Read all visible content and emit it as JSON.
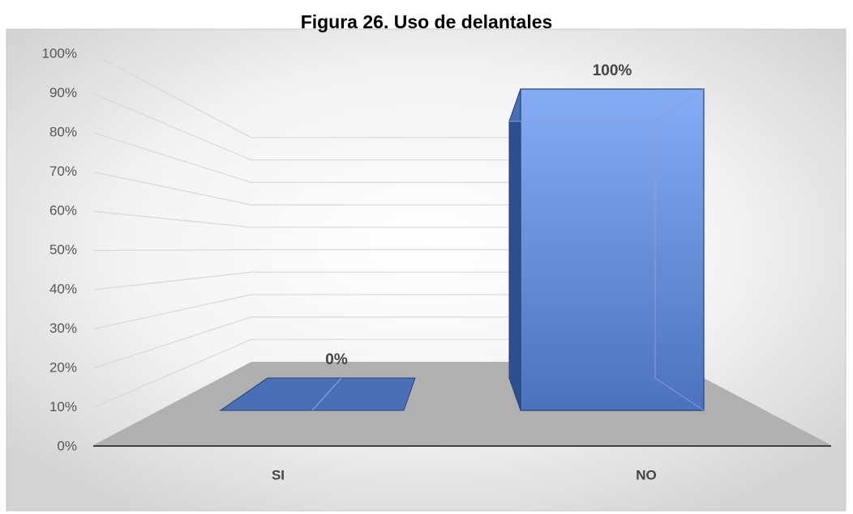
{
  "chart_data": {
    "type": "bar3d",
    "title": "Figura 26. Uso de delantales",
    "categories": [
      "SI",
      "NO"
    ],
    "values": [
      0,
      100
    ],
    "value_labels": [
      "0%",
      "100%"
    ],
    "color": "#5b86d6",
    "ylim": [
      0,
      100
    ],
    "yticks": [
      {
        "value": 0,
        "label": "0%"
      },
      {
        "value": 10,
        "label": "10%"
      },
      {
        "value": 20,
        "label": "20%"
      },
      {
        "value": 30,
        "label": "30%"
      },
      {
        "value": 40,
        "label": "40%"
      },
      {
        "value": 50,
        "label": "50%"
      },
      {
        "value": 60,
        "label": "60%"
      },
      {
        "value": 70,
        "label": "70%"
      },
      {
        "value": 80,
        "label": "80%"
      },
      {
        "value": 90,
        "label": "90%"
      },
      {
        "value": 100,
        "label": "100%"
      }
    ],
    "grid": true
  }
}
